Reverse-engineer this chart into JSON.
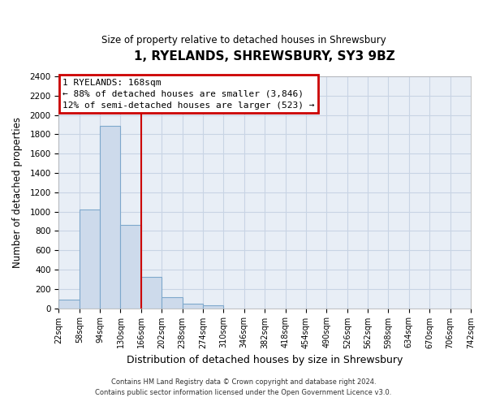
{
  "title": "1, RYELANDS, SHREWSBURY, SY3 9BZ",
  "subtitle": "Size of property relative to detached houses in Shrewsbury",
  "xlabel": "Distribution of detached houses by size in Shrewsbury",
  "ylabel": "Number of detached properties",
  "bar_edges": [
    22,
    58,
    94,
    130,
    166,
    202,
    238,
    274,
    310,
    346,
    382,
    418,
    454,
    490,
    526,
    562,
    598,
    634,
    670,
    706,
    742
  ],
  "bar_heights": [
    90,
    1020,
    1890,
    860,
    320,
    115,
    50,
    30,
    0,
    0,
    0,
    0,
    0,
    0,
    0,
    0,
    0,
    0,
    0,
    0
  ],
  "bar_color": "#cddaeb",
  "bar_edgecolor": "#7ea8cc",
  "property_line_x": 166,
  "ylim": [
    0,
    2400
  ],
  "yticks": [
    0,
    200,
    400,
    600,
    800,
    1000,
    1200,
    1400,
    1600,
    1800,
    2000,
    2200,
    2400
  ],
  "annotation_title": "1 RYELANDS: 168sqm",
  "annotation_line1": "← 88% of detached houses are smaller (3,846)",
  "annotation_line2": "12% of semi-detached houses are larger (523) →",
  "footnote1": "Contains HM Land Registry data © Crown copyright and database right 2024.",
  "footnote2": "Contains public sector information licensed under the Open Government Licence v3.0.",
  "grid_color": "#c8d4e4",
  "background_color": "#e8eef6",
  "tick_labels": [
    "22sqm",
    "58sqm",
    "94sqm",
    "130sqm",
    "166sqm",
    "202sqm",
    "238sqm",
    "274sqm",
    "310sqm",
    "346sqm",
    "382sqm",
    "418sqm",
    "454sqm",
    "490sqm",
    "526sqm",
    "562sqm",
    "598sqm",
    "634sqm",
    "670sqm",
    "706sqm",
    "742sqm"
  ]
}
